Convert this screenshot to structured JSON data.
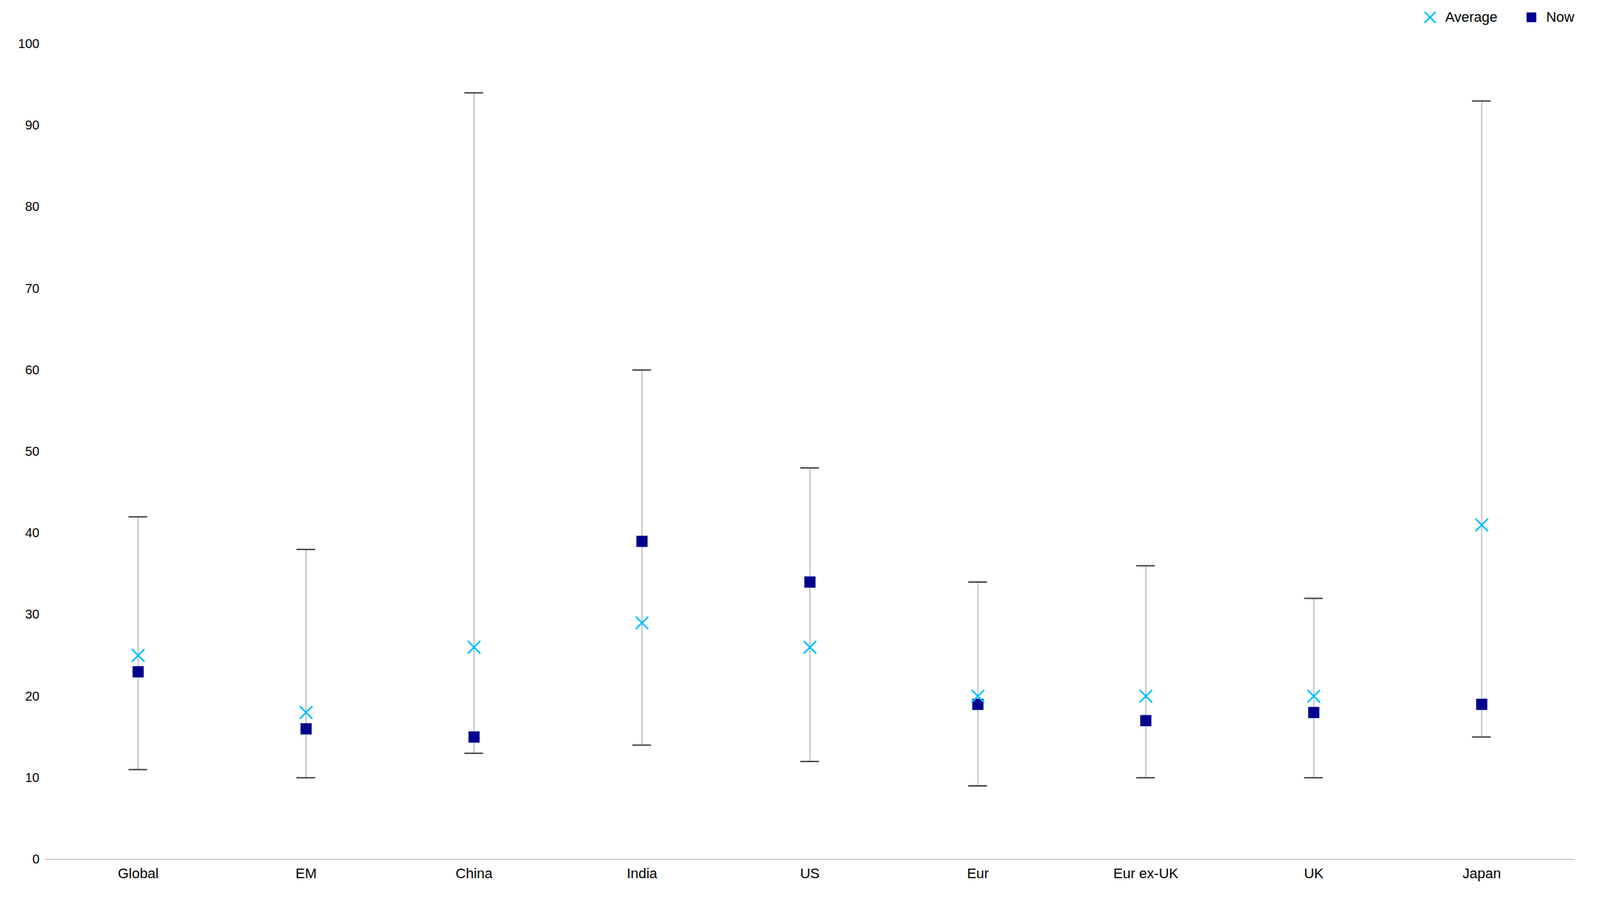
{
  "chart_data": {
    "type": "range",
    "categories": [
      "Global",
      "EM",
      "China",
      "India",
      "US",
      "Eur",
      "Eur ex-UK",
      "UK",
      "Japan"
    ],
    "low": [
      11,
      10,
      13,
      14,
      12,
      9,
      10,
      10,
      15
    ],
    "high": [
      42,
      38,
      94,
      60,
      48,
      34,
      36,
      32,
      93
    ],
    "color": "#c0c0c0",
    "series": [
      {
        "name": "Average",
        "color": "#00bfff",
        "marker": "x",
        "values": [
          25,
          18,
          26,
          29,
          26,
          20,
          20,
          20,
          41
        ]
      },
      {
        "name": "Now",
        "color": "#00008b",
        "marker": "square",
        "values": [
          23,
          16,
          15,
          39,
          34,
          19,
          17,
          18,
          19
        ]
      }
    ],
    "ylim": [
      0,
      100
    ],
    "yticks": [
      0,
      10,
      20,
      30,
      40,
      50,
      60,
      70,
      80,
      90,
      100
    ],
    "grid": false,
    "legend": "upper right"
  }
}
